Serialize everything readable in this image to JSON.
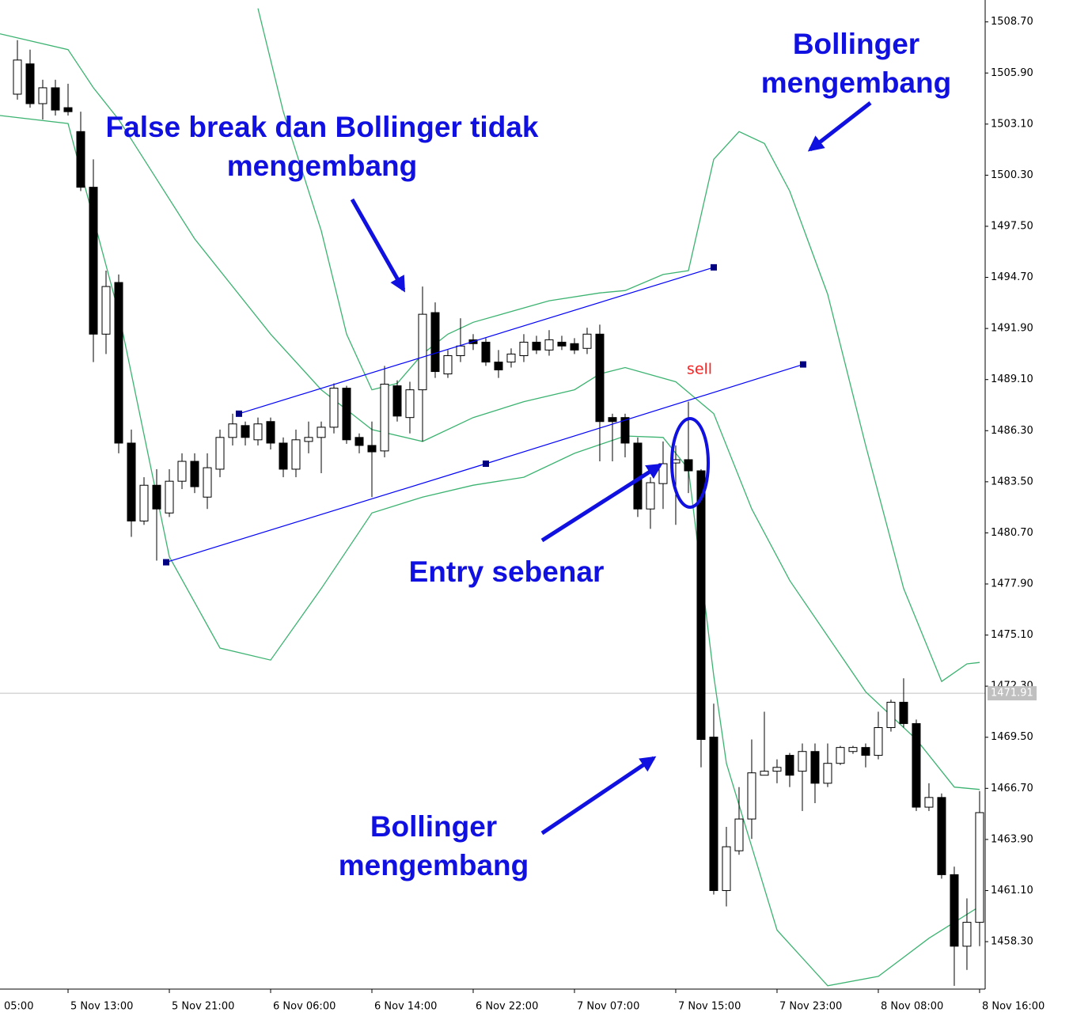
{
  "chart_data": {
    "type": "candlestick",
    "open": [
      1504.74,
      1506.4,
      1504.22,
      1505.09,
      1504.0,
      1502.69,
      1499.64,
      1491.59,
      1494.42,
      1485.62,
      1481.35,
      1483.31,
      1481.79,
      1483.53,
      1484.62,
      1482.66,
      1484.19,
      1485.93,
      1486.58,
      1485.8,
      1486.8,
      1485.62,
      1484.19,
      1485.71,
      1485.93,
      1486.49,
      1488.63,
      1485.93,
      1485.49,
      1485.19,
      1488.76,
      1487.02,
      1488.54,
      1492.77,
      1489.41,
      1490.41,
      1491.28,
      1491.15,
      1490.06,
      1490.06,
      1490.41,
      1491.15,
      1490.72,
      1491.15,
      1491.07,
      1490.81,
      1491.59,
      1487.02,
      1487.02,
      1485.62,
      1482.01,
      1483.4,
      1484.53,
      1484.71,
      1484.1,
      1469.51,
      1461.1,
      1463.28,
      1465.02,
      1467.42,
      1467.64,
      1468.51,
      1467.64,
      1468.72,
      1466.98,
      1468.07,
      1468.72,
      1468.94,
      1468.51,
      1470.03,
      1471.42,
      1470.25,
      1465.67,
      1466.2,
      1461.97,
      1458.05,
      1459.36
    ],
    "high": [
      1507.7,
      1507.18,
      1505.53,
      1505.53,
      1505.31,
      1503.78,
      1501.17,
      1495.07,
      1494.86,
      1486.36,
      1483.75,
      1484.19,
      1484.19,
      1485.06,
      1485.06,
      1485.06,
      1486.36,
      1487.23,
      1486.8,
      1487.02,
      1487.02,
      1485.93,
      1486.36,
      1486.8,
      1486.8,
      1488.89,
      1488.76,
      1486.15,
      1486.8,
      1489.85,
      1489.06,
      1488.98,
      1494.2,
      1493.33,
      1490.72,
      1492.46,
      1491.59,
      1491.37,
      1490.72,
      1490.81,
      1491.59,
      1491.5,
      1491.81,
      1491.5,
      1491.37,
      1491.94,
      1492.11,
      1487.23,
      1487.23,
      1485.93,
      1483.75,
      1485.71,
      1485.49,
      1487.89,
      1484.19,
      1471.34,
      1464.59,
      1466.77,
      1469.38,
      1470.9,
      1468.29,
      1468.64,
      1469.16,
      1469.16,
      1469.16,
      1469.03,
      1469.03,
      1469.16,
      1470.9,
      1471.56,
      1472.73,
      1470.47,
      1466.98,
      1466.42,
      1462.41,
      1460.67,
      1466.55
    ],
    "low": [
      1504.44,
      1504.0,
      1503.35,
      1503.57,
      1503.57,
      1499.43,
      1490.06,
      1490.5,
      1485.06,
      1480.48,
      1481.14,
      1479.18,
      1481.57,
      1483.1,
      1482.88,
      1482.01,
      1483.75,
      1485.49,
      1485.49,
      1485.49,
      1485.27,
      1483.75,
      1483.75,
      1485.06,
      1483.97,
      1486.15,
      1485.58,
      1485.06,
      1482.66,
      1484.84,
      1486.8,
      1486.15,
      1485.71,
      1489.19,
      1489.19,
      1490.06,
      1490.72,
      1489.85,
      1489.19,
      1489.76,
      1490.06,
      1490.5,
      1490.41,
      1490.72,
      1490.5,
      1490.5,
      1484.62,
      1484.62,
      1484.84,
      1481.57,
      1480.92,
      1482.01,
      1481.14,
      1482.88,
      1467.85,
      1460.88,
      1460.23,
      1463.06,
      1463.93,
      1467.42,
      1466.98,
      1466.77,
      1465.46,
      1465.89,
      1466.77,
      1467.98,
      1468.59,
      1467.85,
      1468.29,
      1469.81,
      1470.03,
      1465.46,
      1465.46,
      1461.75,
      1455.88,
      1456.75,
      1458.05
    ],
    "close": [
      1506.61,
      1504.22,
      1505.09,
      1503.87,
      1503.78,
      1499.64,
      1491.59,
      1494.2,
      1485.62,
      1481.35,
      1483.31,
      1482.01,
      1483.53,
      1484.62,
      1483.23,
      1484.27,
      1485.93,
      1486.67,
      1485.93,
      1486.67,
      1485.62,
      1484.19,
      1485.8,
      1485.93,
      1486.49,
      1488.63,
      1485.8,
      1485.49,
      1485.14,
      1488.85,
      1487.1,
      1488.54,
      1492.68,
      1489.54,
      1490.41,
      1490.94,
      1491.07,
      1490.06,
      1489.63,
      1490.5,
      1491.15,
      1490.72,
      1491.28,
      1490.94,
      1490.72,
      1491.59,
      1486.8,
      1486.8,
      1485.62,
      1482.01,
      1483.45,
      1484.49,
      1484.71,
      1484.1,
      1469.38,
      1461.1,
      1463.5,
      1465.02,
      1467.55,
      1467.64,
      1467.85,
      1467.42,
      1468.72,
      1466.98,
      1468.07,
      1468.94,
      1468.94,
      1468.51,
      1470.03,
      1471.42,
      1470.25,
      1465.67,
      1466.2,
      1461.97,
      1458.05,
      1459.36,
      1465.37
    ],
    "bull_color": "#ffffff",
    "bear_color": "#000000",
    "candle_edge": "#000000",
    "bands": [
      {
        "color": "#3cb371",
        "x": [
          19,
          21,
          24,
          26,
          28,
          30,
          32,
          34,
          36,
          42,
          46,
          48,
          51,
          53,
          55,
          57,
          59,
          61,
          64,
          67,
          70,
          73,
          75,
          76
        ],
        "values": [
          1509.44,
          1503.78,
          1497.25,
          1491.59,
          1488.54,
          1488.89,
          1490.5,
          1491.59,
          1492.24,
          1493.42,
          1493.85,
          1493.98,
          1494.86,
          1495.07,
          1501.17,
          1502.69,
          1502.04,
          1499.43,
          1493.77,
          1485.49,
          1477.65,
          1472.56,
          1473.52,
          1473.6
        ]
      },
      {
        "color": "#3cb371",
        "x": [
          -1.375,
          4,
          6,
          8,
          10,
          14,
          20,
          24,
          28,
          32,
          36,
          40,
          44,
          46,
          48,
          52,
          55,
          58,
          61,
          64,
          67,
          71,
          74,
          76
        ],
        "values": [
          1508.05,
          1507.18,
          1505.09,
          1503.35,
          1501.17,
          1496.81,
          1491.59,
          1488.54,
          1486.36,
          1485.71,
          1487.02,
          1487.89,
          1488.54,
          1489.41,
          1489.76,
          1488.98,
          1487.23,
          1482.01,
          1478.09,
          1475.04,
          1471.99,
          1469.38,
          1466.77,
          1466.64
        ]
      },
      {
        "color": "#3cb371",
        "x": [
          -1.375,
          4,
          8,
          12,
          16,
          20,
          24,
          28,
          32,
          36,
          40,
          44,
          48,
          51,
          53,
          55,
          56,
          60,
          64,
          68,
          72,
          76
        ],
        "values": [
          1503.57,
          1503.13,
          1492.77,
          1479.39,
          1474.39,
          1473.73,
          1477.65,
          1481.79,
          1482.66,
          1483.31,
          1483.75,
          1485.06,
          1486.01,
          1485.93,
          1484.19,
          1472.86,
          1468.07,
          1458.93,
          1455.88,
          1456.4,
          1458.49,
          1460.23
        ]
      }
    ],
    "trendlines": [
      {
        "color": "#0000ff",
        "x": [
          17.5,
          55
        ],
        "values": [
          1487.23,
          1495.25
        ]
      },
      {
        "color": "#0000ff",
        "x": [
          11.75,
          37,
          62.06
        ],
        "values": [
          1479.09,
          1484.49,
          1489.93
        ]
      }
    ],
    "current_price": 1471.91,
    "ylim": [
      1455.7,
      1509.9
    ],
    "yticks": [
      {
        "value": 1508.7,
        "label": "1508.70"
      },
      {
        "value": 1505.9,
        "label": "1505.90"
      },
      {
        "value": 1503.1,
        "label": "1503.10"
      },
      {
        "value": 1500.3,
        "label": "1500.30"
      },
      {
        "value": 1497.5,
        "label": "1497.50"
      },
      {
        "value": 1494.7,
        "label": "1494.70"
      },
      {
        "value": 1491.9,
        "label": "1491.90"
      },
      {
        "value": 1489.1,
        "label": "1489.10"
      },
      {
        "value": 1486.3,
        "label": "1486.30"
      },
      {
        "value": 1483.5,
        "label": "1483.50"
      },
      {
        "value": 1480.7,
        "label": "1480.70"
      },
      {
        "value": 1477.9,
        "label": "1477.90"
      },
      {
        "value": 1475.1,
        "label": "1475.10"
      },
      {
        "value": 1472.3,
        "label": "1472.30"
      },
      {
        "value": 1469.5,
        "label": "1469.50"
      },
      {
        "value": 1466.7,
        "label": "1466.70"
      },
      {
        "value": 1463.9,
        "label": "1463.90"
      },
      {
        "value": 1461.1,
        "label": "1461.10"
      },
      {
        "value": 1458.3,
        "label": "1458.30"
      }
    ],
    "xlim": [
      -1.375,
      76.44
    ],
    "xticks": [
      {
        "value": -4,
        "label": "05:00"
      },
      {
        "value": 4,
        "label": "5 Nov 13:00"
      },
      {
        "value": 12,
        "label": "5 Nov 21:00"
      },
      {
        "value": 20,
        "label": "6 Nov 06:00"
      },
      {
        "value": 28,
        "label": "6 Nov 14:00"
      },
      {
        "value": 36,
        "label": "6 Nov 22:00"
      },
      {
        "value": 44,
        "label": "7 Nov 07:00"
      },
      {
        "value": 52,
        "label": "7 Nov 15:00"
      },
      {
        "value": 60,
        "label": "7 Nov 23:00"
      },
      {
        "value": 68,
        "label": "8 Nov 08:00"
      },
      {
        "value": 76,
        "label": "8 Nov 16:00"
      }
    ],
    "annotations": [
      {
        "lines": [
          "False break dan Bollinger tidak",
          "mengembang"
        ]
      },
      {
        "lines": [
          "Bollinger",
          "mengembang"
        ]
      },
      {
        "lines": [
          "Entry sebenar"
        ]
      },
      {
        "lines": [
          "Bollinger",
          "mengembang"
        ]
      }
    ],
    "signal_label": "sell"
  }
}
